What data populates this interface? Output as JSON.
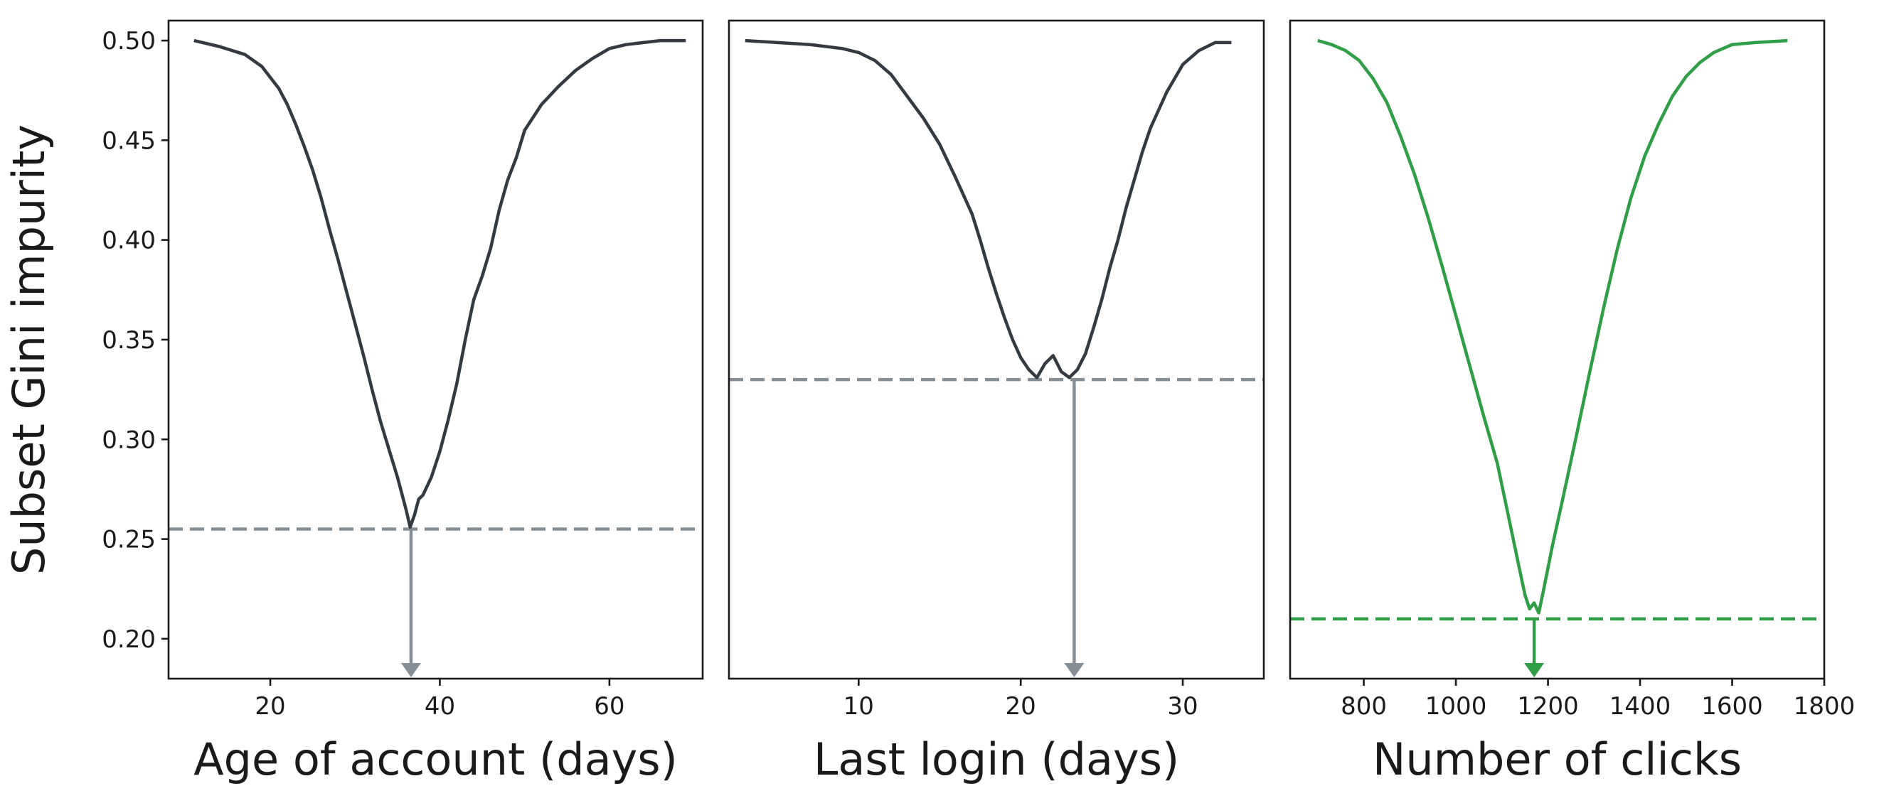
{
  "figure": {
    "ylabel": "Subset Gini impurity"
  },
  "chart_data": [
    {
      "type": "line",
      "xlabel": "Age of account (days)",
      "ylabel": "Subset Gini impurity",
      "xlim": [
        8,
        71
      ],
      "ylim": [
        0.18,
        0.51
      ],
      "xticks": [
        20,
        40,
        60
      ],
      "yticks": [
        0.2,
        0.25,
        0.3,
        0.35,
        0.4,
        0.45,
        0.5
      ],
      "ytick_labels": [
        "0.20",
        "0.25",
        "0.30",
        "0.35",
        "0.40",
        "0.45",
        "0.50"
      ],
      "line_color": "#343a40",
      "guide_color": "#868e96",
      "series": [
        {
          "x": [
            11,
            14,
            17,
            19,
            21,
            22,
            23,
            24,
            25,
            26,
            27,
            28,
            29,
            30,
            31,
            32,
            33,
            34,
            35,
            36,
            36.5,
            37,
            37.5,
            38,
            39,
            40,
            41,
            42,
            43,
            44,
            45,
            46,
            47,
            48,
            49,
            50,
            52,
            54,
            56,
            58,
            60,
            62,
            64,
            66,
            69
          ],
          "y": [
            0.5,
            0.497,
            0.493,
            0.487,
            0.476,
            0.468,
            0.458,
            0.447,
            0.435,
            0.421,
            0.405,
            0.39,
            0.374,
            0.358,
            0.342,
            0.325,
            0.309,
            0.295,
            0.281,
            0.265,
            0.256,
            0.262,
            0.27,
            0.272,
            0.281,
            0.294,
            0.31,
            0.328,
            0.35,
            0.37,
            0.382,
            0.396,
            0.415,
            0.43,
            0.441,
            0.455,
            0.468,
            0.477,
            0.485,
            0.491,
            0.496,
            0.498,
            0.499,
            0.5,
            0.5
          ]
        }
      ],
      "threshold_y": 0.255,
      "split_x": 36.6
    },
    {
      "type": "line",
      "xlabel": "Last login (days)",
      "xlim": [
        2,
        35
      ],
      "ylim": [
        0.18,
        0.51
      ],
      "xticks": [
        10,
        20,
        30
      ],
      "line_color": "#343a40",
      "guide_color": "#868e96",
      "series": [
        {
          "x": [
            3,
            5,
            7,
            9,
            10,
            11,
            12,
            13,
            14,
            15,
            16,
            17,
            17.5,
            18,
            18.5,
            19,
            19.5,
            20,
            20.5,
            21,
            21.5,
            22,
            22.5,
            23,
            23.5,
            24,
            24.5,
            25,
            25.5,
            26,
            26.5,
            27,
            27.5,
            28,
            29,
            30,
            31,
            32,
            33
          ],
          "y": [
            0.5,
            0.499,
            0.498,
            0.496,
            0.494,
            0.49,
            0.483,
            0.472,
            0.461,
            0.448,
            0.431,
            0.413,
            0.4,
            0.386,
            0.373,
            0.361,
            0.35,
            0.341,
            0.335,
            0.331,
            0.338,
            0.342,
            0.334,
            0.331,
            0.335,
            0.343,
            0.356,
            0.37,
            0.386,
            0.4,
            0.416,
            0.43,
            0.444,
            0.456,
            0.474,
            0.488,
            0.495,
            0.499,
            0.499
          ]
        }
      ],
      "threshold_y": 0.33,
      "split_x": 23.3
    },
    {
      "type": "line",
      "xlabel": "Number of clicks",
      "xlim": [
        640,
        1800
      ],
      "ylim": [
        0.18,
        0.51
      ],
      "xticks": [
        800,
        1000,
        1200,
        1400,
        1600,
        1800
      ],
      "line_color": "#2f9e44",
      "guide_color": "#2f9e44",
      "series": [
        {
          "x": [
            700,
            730,
            760,
            790,
            820,
            850,
            880,
            910,
            940,
            970,
            1000,
            1030,
            1060,
            1090,
            1110,
            1130,
            1150,
            1160,
            1170,
            1180,
            1190,
            1210,
            1230,
            1260,
            1290,
            1320,
            1350,
            1380,
            1410,
            1440,
            1470,
            1500,
            1530,
            1560,
            1600,
            1650,
            1720
          ],
          "y": [
            0.5,
            0.498,
            0.495,
            0.49,
            0.481,
            0.469,
            0.452,
            0.433,
            0.411,
            0.387,
            0.362,
            0.337,
            0.312,
            0.288,
            0.266,
            0.244,
            0.222,
            0.215,
            0.218,
            0.213,
            0.224,
            0.247,
            0.268,
            0.3,
            0.333,
            0.365,
            0.395,
            0.421,
            0.442,
            0.458,
            0.472,
            0.482,
            0.489,
            0.494,
            0.498,
            0.499,
            0.5
          ]
        }
      ],
      "threshold_y": 0.21,
      "split_x": 1170
    }
  ]
}
